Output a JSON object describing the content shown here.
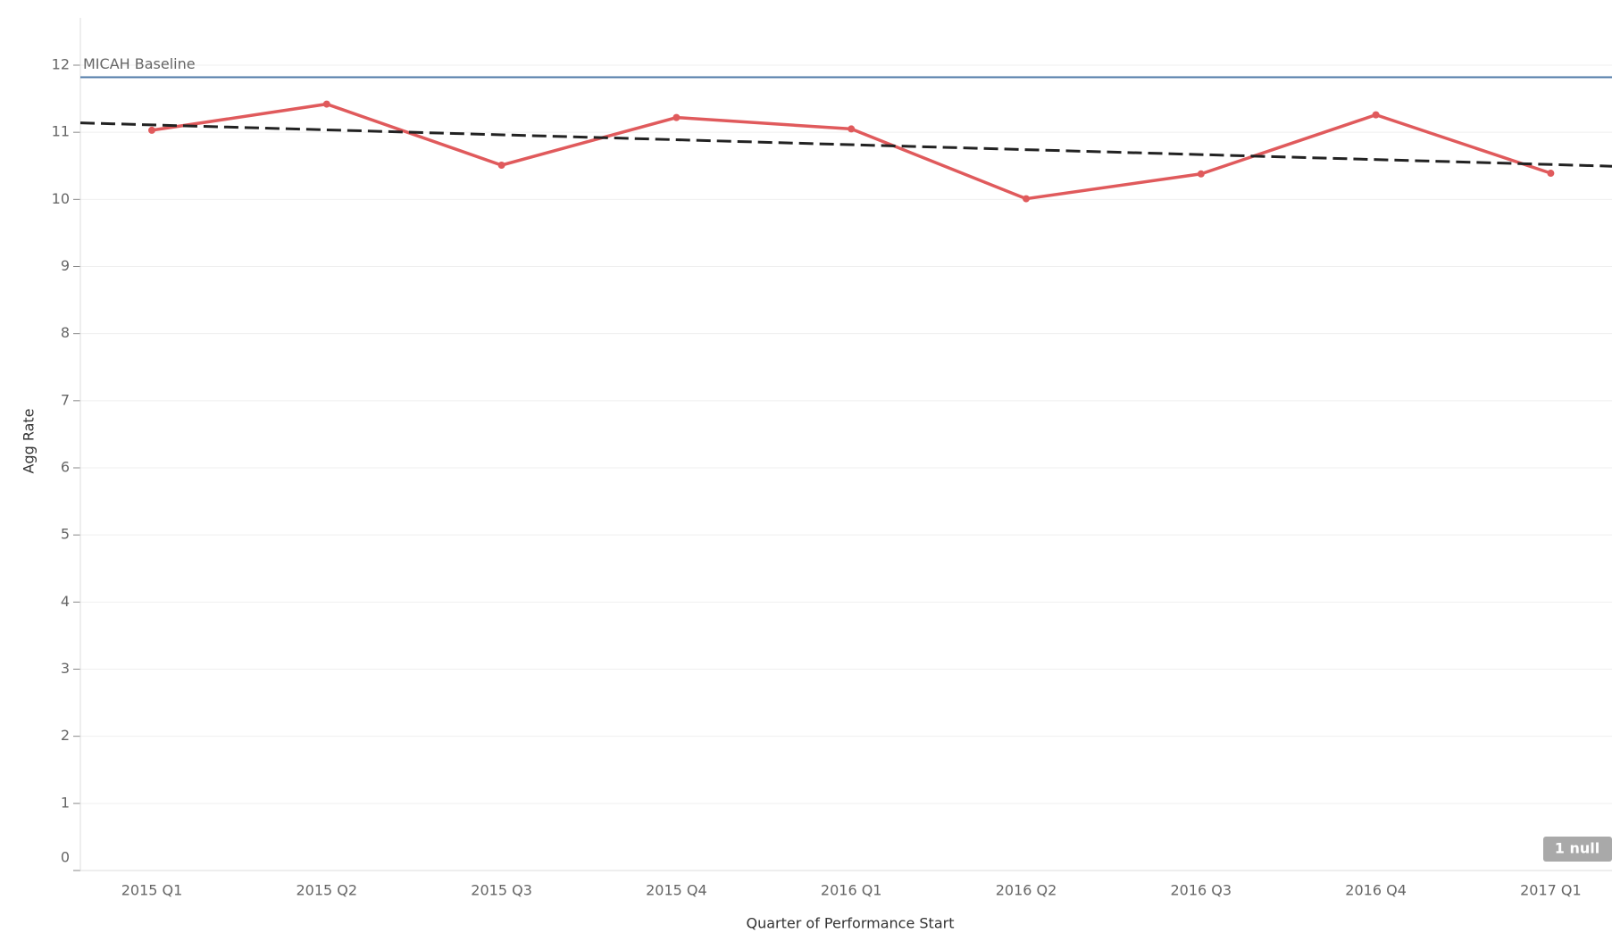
{
  "chart_data": {
    "type": "line",
    "categories": [
      "2015 Q1",
      "2015 Q2",
      "2015 Q3",
      "2015 Q4",
      "2016 Q1",
      "2016 Q2",
      "2016 Q3",
      "2016 Q4",
      "2017 Q1"
    ],
    "series": [
      {
        "name": "Agg Rate",
        "color": "#e05a5c",
        "values": [
          11.03,
          11.42,
          10.51,
          11.22,
          11.05,
          10.01,
          10.38,
          11.26,
          10.39
        ]
      }
    ],
    "x_label": "Quarter of Performance Start",
    "y_label": "Agg Rate",
    "ylim": [
      0,
      12.5
    ],
    "yticks": [
      0,
      1,
      2,
      3,
      4,
      5,
      6,
      7,
      8,
      9,
      10,
      11,
      12
    ],
    "grid": true,
    "reference_line": {
      "label": "MICAH Baseline",
      "value": 11.82,
      "color": "#4e79a7"
    },
    "trend_line": {
      "values": [
        11.11,
        10.52
      ],
      "color": "#222222"
    },
    "null_indicator": "1 null"
  }
}
